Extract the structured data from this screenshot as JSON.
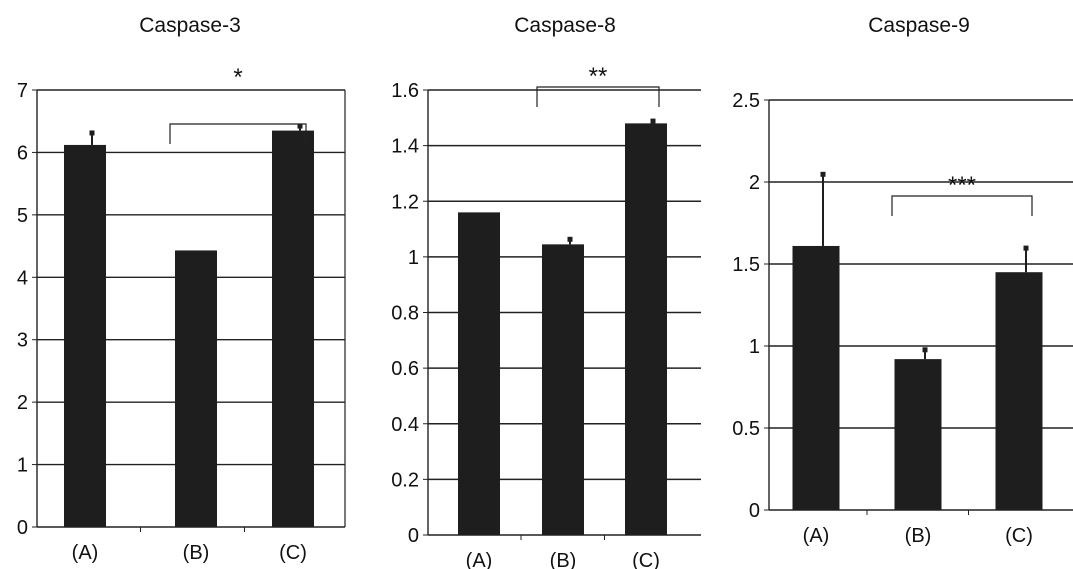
{
  "chart_data": [
    {
      "type": "bar",
      "title": "Caspase-3",
      "categories": [
        "(A)",
        "(B)",
        "(C)"
      ],
      "values": [
        6.12,
        4.43,
        6.35
      ],
      "errors": [
        0.2,
        0,
        0.08
      ],
      "ylim": [
        0,
        7
      ],
      "yticks": [
        0,
        1,
        2,
        3,
        4,
        5,
        6,
        7
      ],
      "ytick_labels": [
        "0",
        "1",
        "2",
        "3",
        "4",
        "5",
        "6",
        "7"
      ],
      "grid": true,
      "significance": {
        "from": 1,
        "to": 2,
        "label": "*"
      }
    },
    {
      "type": "bar",
      "title": "Caspase-8",
      "categories": [
        "(A)",
        "(B)",
        "(C)"
      ],
      "values": [
        1.16,
        1.045,
        1.48
      ],
      "errors": [
        0,
        0.02,
        0.01
      ],
      "ylim": [
        0,
        1.6
      ],
      "yticks": [
        0,
        0.2,
        0.4,
        0.6,
        0.8,
        1.0,
        1.2,
        1.4,
        1.6
      ],
      "ytick_labels": [
        "0",
        "0.2",
        "0.4",
        "0.6",
        "0.8",
        "1",
        "1.2",
        "1.4",
        "1.6"
      ],
      "grid": true,
      "significance": {
        "from": 1,
        "to": 2,
        "label": "**"
      }
    },
    {
      "type": "bar",
      "title": "Caspase-9",
      "categories": [
        "(A)",
        "(B)",
        "(C)"
      ],
      "values": [
        1.61,
        0.92,
        1.45
      ],
      "errors": [
        0.44,
        0.06,
        0.15
      ],
      "ylim": [
        0,
        2.5
      ],
      "yticks": [
        0,
        0.5,
        1.0,
        1.5,
        2.0,
        2.5
      ],
      "ytick_labels": [
        "0",
        "0.5",
        "1",
        "1.5",
        "2",
        "2.5"
      ],
      "grid": true,
      "significance": {
        "from": 1,
        "to": 2,
        "label": "***"
      }
    }
  ]
}
